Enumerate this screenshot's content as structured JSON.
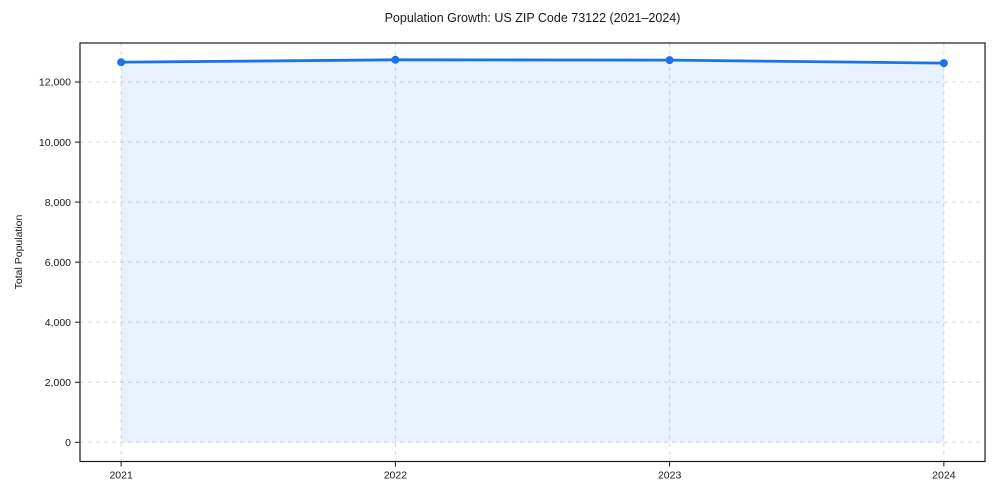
{
  "chart_data": {
    "type": "line",
    "title": "Population Growth: US ZIP Code 73122 (2021–2024)",
    "ylabel": "Total Population",
    "xlabel": "",
    "x": [
      2021,
      2022,
      2023,
      2024
    ],
    "xtick_labels": [
      "2021",
      "2022",
      "2023",
      "2024"
    ],
    "series": [
      {
        "name": "Total Population",
        "values": [
          12660,
          12740,
          12730,
          12630
        ],
        "line_color": "#1a73e8",
        "marker": "circle",
        "area_fill": true,
        "fill_opacity": 0.1
      }
    ],
    "yticks": [
      0,
      2000,
      4000,
      6000,
      8000,
      10000,
      12000
    ],
    "ytick_labels": [
      "0",
      "2,000",
      "4,000",
      "6,000",
      "8,000",
      "10,000",
      "12,000"
    ],
    "ylim": [
      -640,
      13300
    ],
    "xlim": [
      2020.85,
      2024.15
    ],
    "grid": true,
    "grid_style": "dashed",
    "grid_color": "#d9d9d9",
    "axis_color": "#1a1a1a",
    "text_color": "#1a1a1a",
    "background": "#ffffff",
    "legend": "none"
  }
}
